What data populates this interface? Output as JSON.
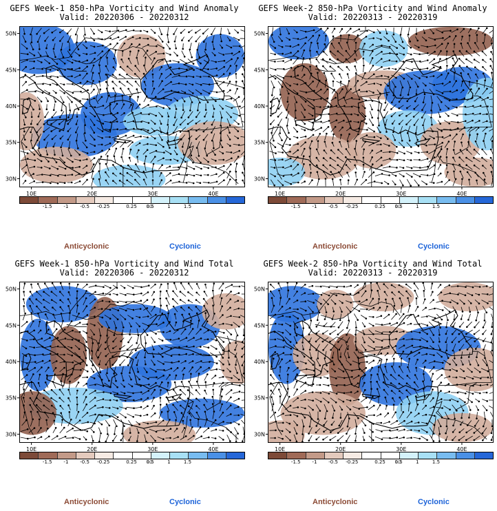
{
  "panels": [
    {
      "title": "GEFS Week-1 850-hPa Vorticity and Wind Anomaly",
      "valid": "Valid: 20220306 - 20220312",
      "anticyclonic_label": "Anticyclonic",
      "cyclonic_label": "Cyclonic"
    },
    {
      "title": "GEFS Week-2 850-hPa Vorticity and Wind Anomaly",
      "valid": "Valid: 20220313 - 20220319",
      "anticyclonic_label": "Anticyclonic",
      "cyclonic_label": "Cyclonic"
    },
    {
      "title": "GEFS Week-1 850-hPa Vorticity and Wind Total",
      "valid": "Valid: 20220306 - 20220312",
      "anticyclonic_label": "Anticyclonic",
      "cyclonic_label": "Cyclonic"
    },
    {
      "title": "GEFS Week-2 850-hPa Vorticity and Wind Total",
      "valid": "Valid: 20220313 - 20220319",
      "anticyclonic_label": "Anticyclonic",
      "cyclonic_label": "Cyclonic"
    }
  ],
  "map_extent": {
    "lon": [
      8,
      45
    ],
    "lat": [
      29,
      51
    ]
  },
  "lon_ticks": [
    {
      "value": 10,
      "label": "10E"
    },
    {
      "value": 20,
      "label": "20E"
    },
    {
      "value": 30,
      "label": "30E"
    },
    {
      "value": 40,
      "label": "40E"
    }
  ],
  "lat_ticks": [
    {
      "value": 50,
      "label": "50N"
    },
    {
      "value": 45,
      "label": "45N"
    },
    {
      "value": 40,
      "label": "40N"
    },
    {
      "value": 35,
      "label": "35N"
    },
    {
      "value": 30,
      "label": "30N"
    }
  ],
  "colorbar": {
    "colors": [
      "#7d4a38",
      "#a06b58",
      "#c39a88",
      "#e4cabd",
      "#f6ebe4",
      "#ffffff",
      "#ffffff",
      "#d4f2fb",
      "#a8e0f5",
      "#78bcf0",
      "#4a90e6",
      "#2567d8"
    ],
    "labels": [
      "-1.5",
      "-1",
      "-0.5",
      "-0.25",
      "0.25",
      "0.5",
      "1",
      "1.5"
    ],
    "center_label": "10",
    "anticyclonic_color": "#8b4a35",
    "cyclonic_color": "#1b62d8"
  }
}
